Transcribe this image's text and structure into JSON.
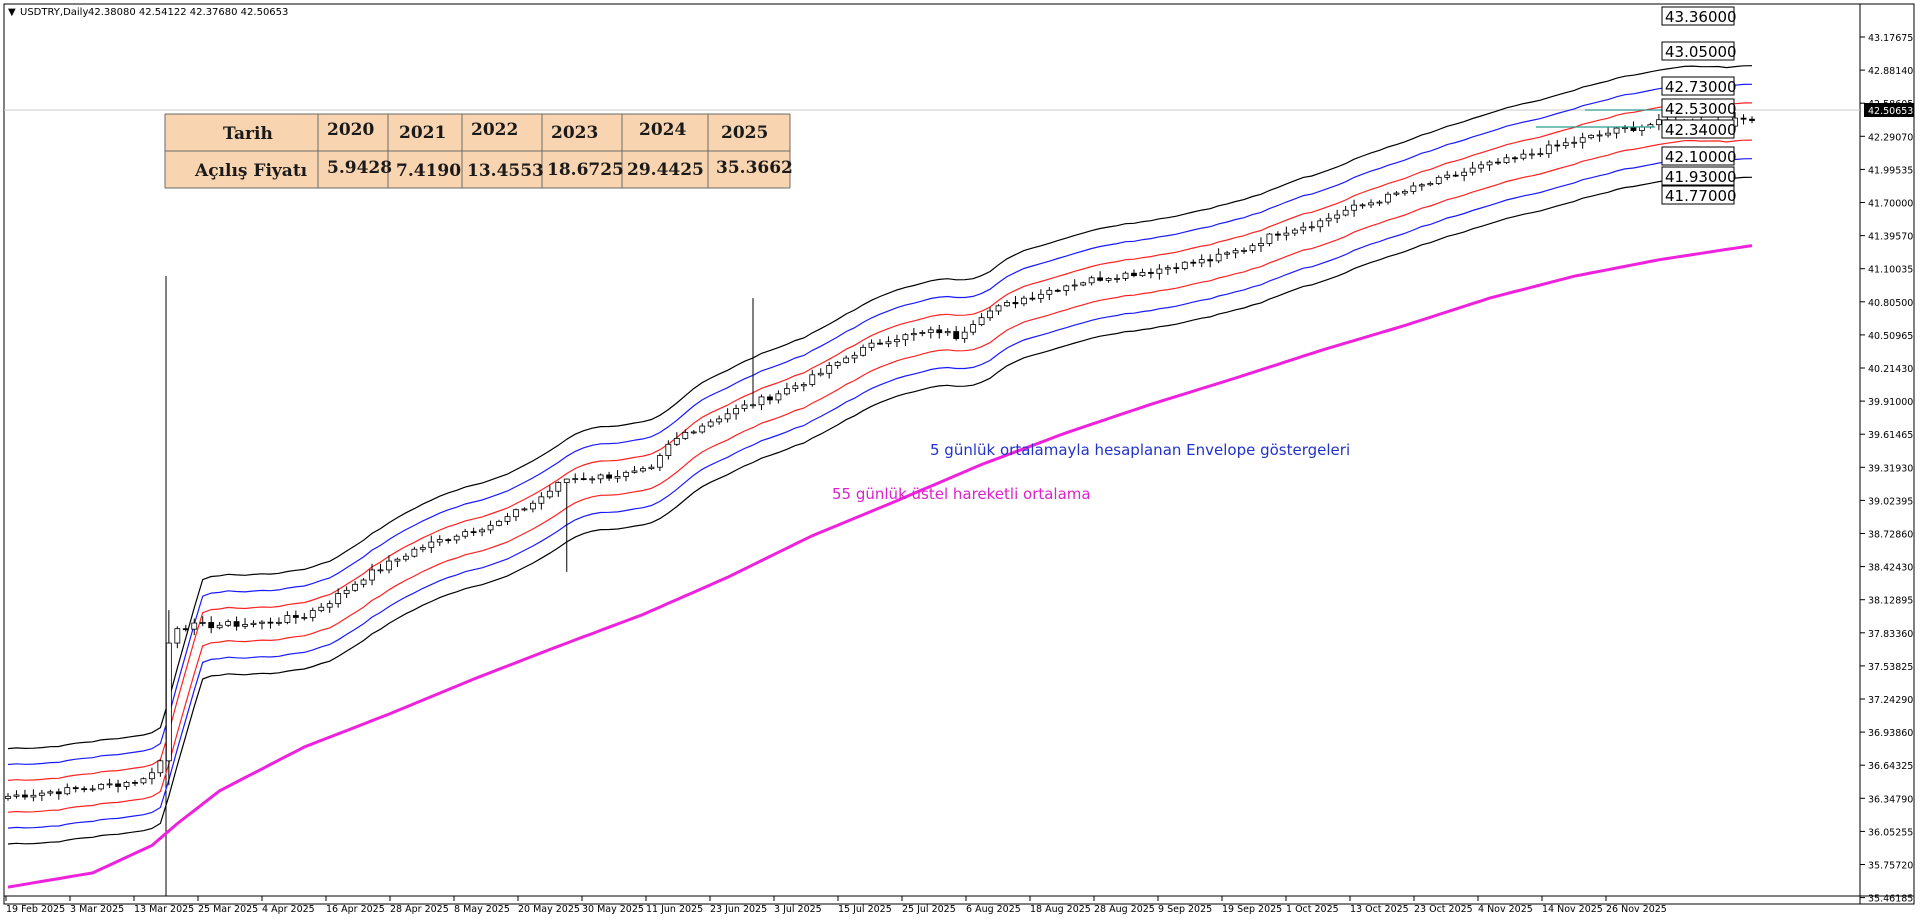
{
  "window": {
    "symbol_label": "USDTRY,Daily",
    "ohlc_text": "42.38080 42.54122 42.37680 42.50653"
  },
  "colors": {
    "outer_band": "#000000",
    "blue_band": "#1a1aff",
    "red_band": "#ff2222",
    "ema": "#ee22dd",
    "annot_blue": "#2233cc",
    "annot_magenta": "#dd22cc",
    "table_bg": "#f8d5b0",
    "level_line": "#2a9d8f"
  },
  "annotations": {
    "envelope_note": "5 günlük ortalamayla hesaplanan Envelope göstergeleri",
    "ema_note": "55 günlük üstel hareketli ortalama"
  },
  "table": {
    "header_label": "Tarih",
    "row_label": "Açılış Fiyatı",
    "years": [
      "2020",
      "2021",
      "2022",
      "2023",
      "2024",
      "2025"
    ],
    "values": [
      "5.9428",
      "7.4190",
      "13.4553",
      "18.6725",
      "29.4425",
      "35.3662"
    ]
  },
  "level_boxes": [
    "43.36000",
    "43.05000",
    "42.73000",
    "42.53000",
    "42.34000",
    "42.10000",
    "41.93000",
    "41.77000"
  ],
  "chart_data": {
    "type": "candlestick",
    "x_ticks": [
      "19 Feb 2025",
      "3 Mar 2025",
      "13 Mar 2025",
      "25 Mar 2025",
      "4 Apr 2025",
      "16 Apr 2025",
      "28 Apr 2025",
      "8 May 2025",
      "20 May 2025",
      "30 May 2025",
      "11 Jun 2025",
      "23 Jun 2025",
      "3 Jul 2025",
      "15 Jul 2025",
      "25 Jul 2025",
      "6 Aug 2025",
      "18 Aug 2025",
      "28 Aug 2025",
      "9 Sep 2025",
      "19 Sep 2025",
      "1 Oct 2025",
      "13 Oct 2025",
      "23 Oct 2025",
      "4 Nov 2025",
      "14 Nov 2025",
      "26 Nov 2025"
    ],
    "y_ticks": [
      "43.17675",
      "42.88140",
      "42.58605",
      "42.29070",
      "41.99535",
      "41.70000",
      "41.39570",
      "41.10035",
      "40.80500",
      "40.50965",
      "40.21430",
      "39.91000",
      "39.61465",
      "39.31930",
      "39.02395",
      "38.72860",
      "38.42430",
      "38.12895",
      "37.83360",
      "37.53825",
      "37.24290",
      "36.93860",
      "36.64325",
      "36.34790",
      "36.05255",
      "35.75720",
      "35.46185"
    ],
    "current_price_label": "42.50653",
    "ylim": [
      35.46185,
      43.5
    ],
    "close_waypoints": [
      [
        0,
        36.3
      ],
      [
        10,
        36.38
      ],
      [
        16,
        36.45
      ],
      [
        18,
        36.62
      ],
      [
        19,
        37.7
      ],
      [
        20,
        37.85
      ],
      [
        30,
        37.88
      ],
      [
        35,
        37.95
      ],
      [
        38,
        38.08
      ],
      [
        42,
        38.3
      ],
      [
        48,
        38.55
      ],
      [
        54,
        38.72
      ],
      [
        58,
        38.8
      ],
      [
        62,
        38.98
      ],
      [
        66,
        39.2
      ],
      [
        70,
        39.22
      ],
      [
        74,
        39.25
      ],
      [
        76,
        39.28
      ],
      [
        78,
        39.5
      ],
      [
        80,
        39.62
      ],
      [
        85,
        39.8
      ],
      [
        90,
        39.95
      ],
      [
        95,
        40.12
      ],
      [
        100,
        40.35
      ],
      [
        104,
        40.48
      ],
      [
        110,
        40.55
      ],
      [
        112,
        40.5
      ],
      [
        115,
        40.7
      ],
      [
        120,
        40.85
      ],
      [
        125,
        40.97
      ],
      [
        130,
        41.05
      ],
      [
        135,
        41.1
      ],
      [
        138,
        41.15
      ],
      [
        142,
        41.2
      ],
      [
        146,
        41.3
      ],
      [
        150,
        41.45
      ],
      [
        155,
        41.55
      ],
      [
        158,
        41.65
      ],
      [
        162,
        41.75
      ],
      [
        166,
        41.85
      ],
      [
        170,
        41.95
      ],
      [
        174,
        42.05
      ],
      [
        178,
        42.12
      ],
      [
        182,
        42.22
      ],
      [
        186,
        42.3
      ],
      [
        190,
        42.38
      ],
      [
        195,
        42.45
      ],
      [
        200,
        42.47
      ],
      [
        203,
        42.45
      ],
      [
        206,
        42.5
      ]
    ],
    "ema_waypoints": [
      [
        0,
        35.47
      ],
      [
        10,
        35.6
      ],
      [
        17,
        35.85
      ],
      [
        20,
        36.05
      ],
      [
        25,
        36.35
      ],
      [
        35,
        36.75
      ],
      [
        45,
        37.05
      ],
      [
        55,
        37.37
      ],
      [
        65,
        37.67
      ],
      [
        75,
        37.96
      ],
      [
        85,
        38.3
      ],
      [
        95,
        38.68
      ],
      [
        105,
        39.0
      ],
      [
        115,
        39.33
      ],
      [
        125,
        39.62
      ],
      [
        135,
        39.88
      ],
      [
        145,
        40.12
      ],
      [
        155,
        40.37
      ],
      [
        165,
        40.6
      ],
      [
        175,
        40.85
      ],
      [
        185,
        41.05
      ],
      [
        195,
        41.2
      ],
      [
        206,
        41.33
      ]
    ],
    "envelopes_pct": [
      0.4,
      0.8,
      1.2
    ]
  }
}
